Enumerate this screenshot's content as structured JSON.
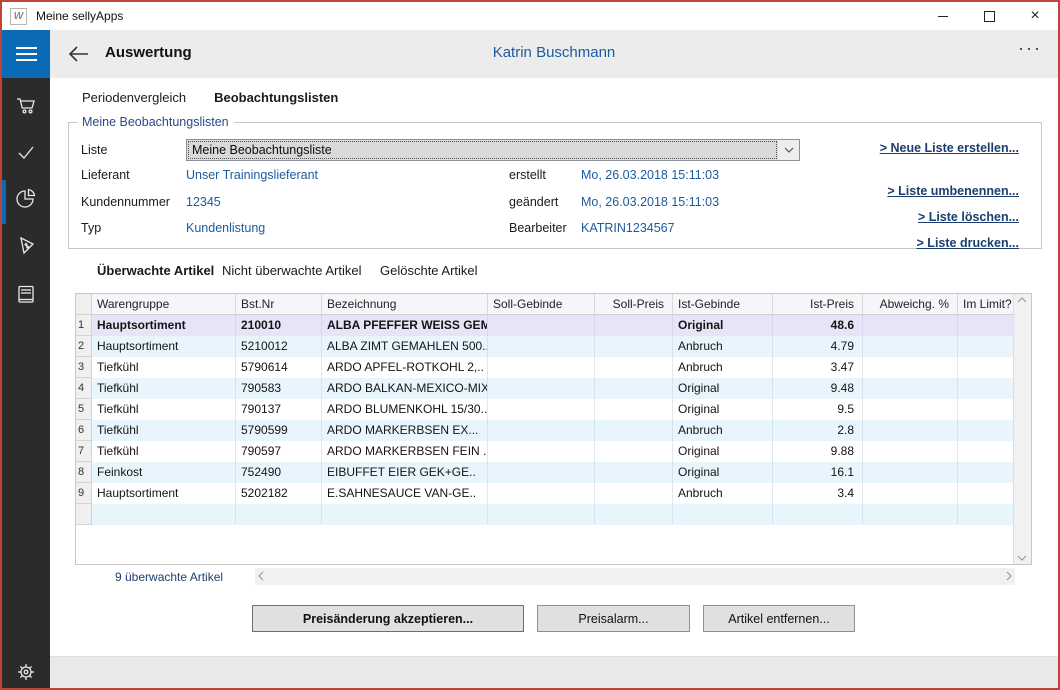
{
  "window": {
    "title": "Meine sellyApps",
    "icon_glyph": "W",
    "controls": [
      "minimize-icon",
      "maximize-icon",
      "close-icon"
    ]
  },
  "header": {
    "title": "Auswertung",
    "user": "Katrin Buschmann",
    "more_glyph": "···"
  },
  "sidebar": {
    "items": [
      "cart-icon",
      "checkmark-icon",
      "pie-chart-icon",
      "price-tag-icon",
      "book-icon"
    ],
    "active_item": "pie-chart-icon",
    "bottom_item": "gear-icon"
  },
  "tabs": {
    "periodenvergleich": "Periodenvergleich",
    "beobachtungslisten": "Beobachtungslisten"
  },
  "panel": {
    "title": "Meine Beobachtungslisten",
    "liste_label": "Liste",
    "liste_value": "Meine Beobachtungsliste",
    "lieferant_label": "Lieferant",
    "lieferant_value": "Unser Trainingslieferant",
    "kundennummer_label": "Kundennummer",
    "kundennummer_value": "12345",
    "typ_label": "Typ",
    "typ_value": "Kundenlistung",
    "erstellt_label": "erstellt",
    "erstellt_value": "Mo, 26.03.2018 15:11:03",
    "geaendert_label": "geändert",
    "geaendert_value": "Mo, 26.03.2018 15:11:03",
    "bearbeiter_label": "Bearbeiter",
    "bearbeiter_value": "KATRIN1234567",
    "links": {
      "neue": "> Neue Liste erstellen...",
      "umbenennen": "> Liste umbenennen...",
      "loeschen": "> Liste löschen...",
      "drucken": "> Liste drucken..."
    }
  },
  "article_tabs": {
    "ueberwachte": "Überwachte Artikel",
    "nicht_ueberwachte": "Nicht überwachte Artikel",
    "geloeschte": "Gelöschte Artikel"
  },
  "table": {
    "columns": [
      {
        "key": "warengruppe",
        "label": "Warengruppe",
        "align": "left"
      },
      {
        "key": "bstnr",
        "label": "Bst.Nr",
        "align": "left"
      },
      {
        "key": "bezeichnung",
        "label": "Bezeichnung",
        "align": "left"
      },
      {
        "key": "soll_gebinde",
        "label": "Soll-Gebinde",
        "align": "left"
      },
      {
        "key": "soll_preis",
        "label": "Soll-Preis",
        "align": "right"
      },
      {
        "key": "ist_gebinde",
        "label": "Ist-Gebinde",
        "align": "left"
      },
      {
        "key": "ist_preis",
        "label": "Ist-Preis",
        "align": "right"
      },
      {
        "key": "abweichg",
        "label": "Abweichg. %",
        "align": "right"
      },
      {
        "key": "im_limit",
        "label": "Im Limit?",
        "align": "left"
      }
    ],
    "rows": [
      {
        "num": "1",
        "warengruppe": "Hauptsortiment",
        "bstnr": "210010",
        "bezeichnung": "ALBA PFEFFER WEISS GEM..",
        "soll_gebinde": "",
        "soll_preis": "",
        "ist_gebinde": "Original",
        "ist_preis": "48.6",
        "abweichg": "",
        "im_limit": ""
      },
      {
        "num": "2",
        "warengruppe": "Hauptsortiment",
        "bstnr": "5210012",
        "bezeichnung": "ALBA ZIMT GEMAHLEN 500..",
        "soll_gebinde": "",
        "soll_preis": "",
        "ist_gebinde": "Anbruch",
        "ist_preis": "4.79",
        "abweichg": "",
        "im_limit": ""
      },
      {
        "num": "3",
        "warengruppe": "Tiefkühl",
        "bstnr": "5790614",
        "bezeichnung": "ARDO APFEL-ROTKOHL 2,..",
        "soll_gebinde": "",
        "soll_preis": "",
        "ist_gebinde": "Anbruch",
        "ist_preis": "3.47",
        "abweichg": "",
        "im_limit": ""
      },
      {
        "num": "4",
        "warengruppe": "Tiefkühl",
        "bstnr": "790583",
        "bezeichnung": "ARDO BALKAN-MEXICO-MIX..",
        "soll_gebinde": "",
        "soll_preis": "",
        "ist_gebinde": "Original",
        "ist_preis": "9.48",
        "abweichg": "",
        "im_limit": ""
      },
      {
        "num": "5",
        "warengruppe": "Tiefkühl",
        "bstnr": "790137",
        "bezeichnung": "ARDO BLUMENKOHL 15/30..",
        "soll_gebinde": "",
        "soll_preis": "",
        "ist_gebinde": "Original",
        "ist_preis": "9.5",
        "abweichg": "",
        "im_limit": ""
      },
      {
        "num": "6",
        "warengruppe": "Tiefkühl",
        "bstnr": "5790599",
        "bezeichnung": "ARDO MARKERBSEN EX...",
        "soll_gebinde": "",
        "soll_preis": "",
        "ist_gebinde": "Anbruch",
        "ist_preis": "2.8",
        "abweichg": "",
        "im_limit": ""
      },
      {
        "num": "7",
        "warengruppe": "Tiefkühl",
        "bstnr": "790597",
        "bezeichnung": "ARDO MARKERBSEN FEIN ..",
        "soll_gebinde": "",
        "soll_preis": "",
        "ist_gebinde": "Original",
        "ist_preis": "9.88",
        "abweichg": "",
        "im_limit": ""
      },
      {
        "num": "8",
        "warengruppe": "Feinkost",
        "bstnr": "752490",
        "bezeichnung": "EIBUFFET EIER GEK+GE..",
        "soll_gebinde": "",
        "soll_preis": "",
        "ist_gebinde": "Original",
        "ist_preis": "16.1",
        "abweichg": "",
        "im_limit": ""
      },
      {
        "num": "9",
        "warengruppe": "Hauptsortiment",
        "bstnr": "5202182",
        "bezeichnung": "E.SAHNESAUCE VAN-GE..",
        "soll_gebinde": "",
        "soll_preis": "",
        "ist_gebinde": "Anbruch",
        "ist_preis": "3.4",
        "abweichg": "",
        "im_limit": ""
      },
      {
        "num": "",
        "warengruppe": "",
        "bstnr": "",
        "bezeichnung": "",
        "soll_gebinde": "",
        "soll_preis": "",
        "ist_gebinde": "",
        "ist_preis": "",
        "abweichg": "",
        "im_limit": ""
      }
    ]
  },
  "status_text": "9 überwachte Artikel",
  "buttons": {
    "akzeptieren": "Preisänderung akzeptieren...",
    "preisalarm": "Preisalarm...",
    "entfernen": "Artikel entfernen..."
  },
  "colors": {
    "accent_blue": "#0a6ab5",
    "value_blue": "#1d5b9e",
    "link_navy": "#1c3e6e",
    "window_border_red": "#bf4339",
    "selected_row": "#e7e4f7",
    "alt_row": "#e9f5fc",
    "sidebar_bg": "#2b2b2b"
  }
}
